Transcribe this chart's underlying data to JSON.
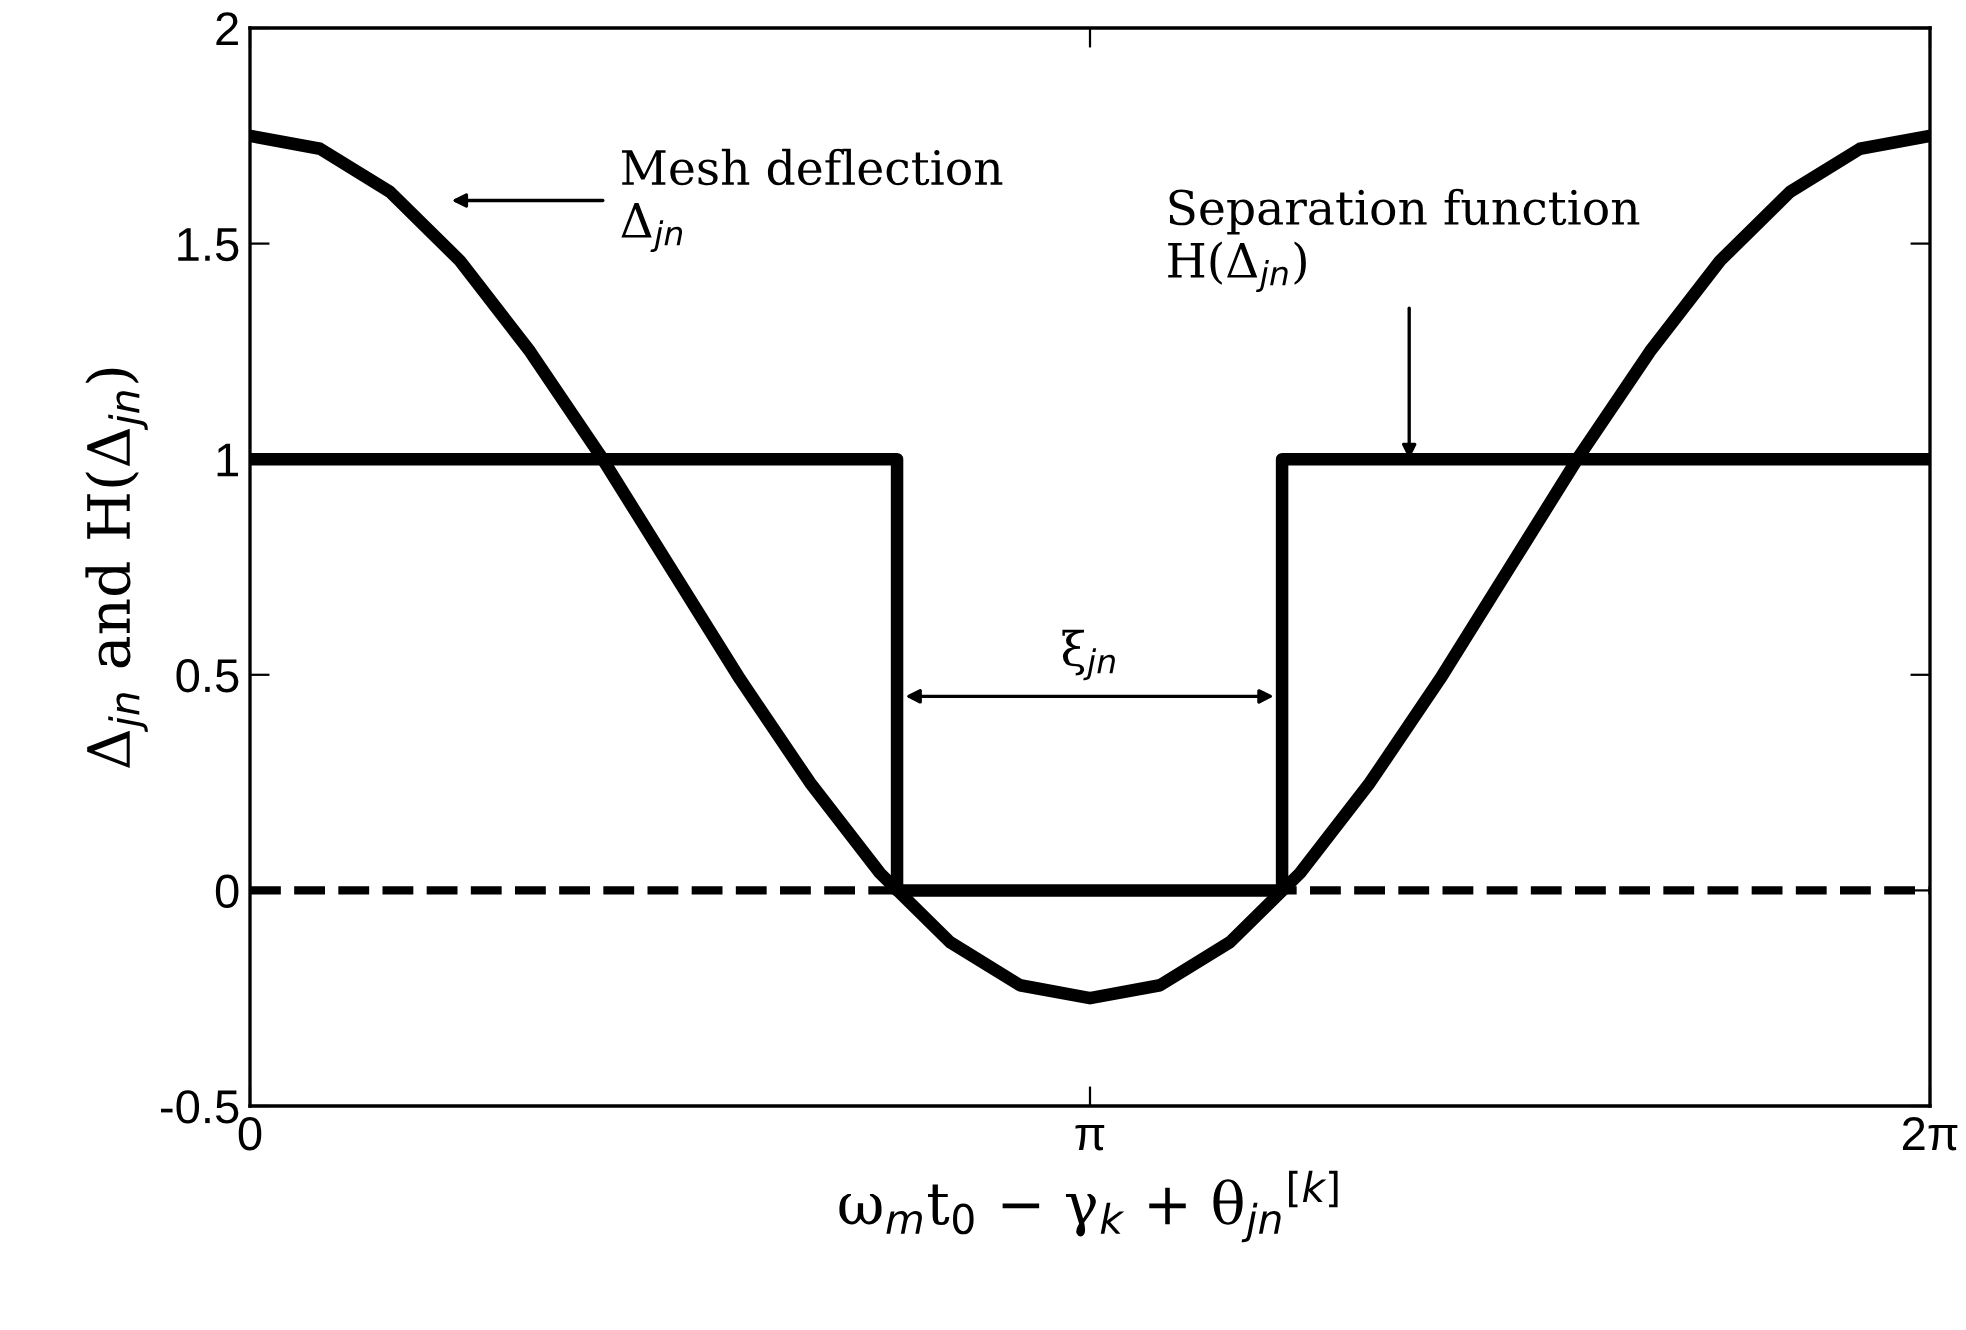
{
  "chart_data": {
    "type": "line",
    "xlabel": "ω$_{m}$t$_{0}$ − γ$_{k}$ + θ$_{jn}$$^{[k]}$",
    "ylabel": "Δ$_{jn}$ and H(Δ$_{jn}$)",
    "xlim": [
      0,
      6.2832
    ],
    "xticks": [
      0,
      {
        "value": 3.1416,
        "label": "π"
      },
      {
        "value": 6.2832,
        "label": "2π"
      }
    ],
    "ylim": [
      -0.5,
      2
    ],
    "yticks": [
      -0.5,
      0,
      0.5,
      1,
      1.5,
      2
    ],
    "grid": false,
    "legend": false,
    "marker": "none",
    "line_style": "solid",
    "series": [
      {
        "color": "#000000",
        "x": [
          0,
          0.2618,
          0.5236,
          0.7854,
          1.0472,
          1.309,
          1.5708,
          1.8326,
          2.0944,
          2.3562,
          2.618,
          2.8798,
          3.1416,
          3.4034,
          3.6652,
          3.927,
          4.1888,
          4.4506,
          4.7124,
          4.9742,
          5.236,
          5.4978,
          5.7596,
          6.0214,
          6.2832
        ],
        "values": [
          1.75,
          1.72,
          1.62,
          1.46,
          1.25,
          1.01,
          0.75,
          0.49,
          0.25,
          0.04,
          -0.12,
          -0.22,
          -0.25,
          -0.22,
          -0.12,
          0.04,
          0.25,
          0.49,
          0.75,
          1.01,
          1.25,
          1.46,
          1.62,
          1.72,
          1.75
        ]
      },
      {
        "color": "#000000",
        "x": [
          0,
          2.42,
          2.42,
          3.86,
          3.86,
          6.2832
        ],
        "values": [
          1,
          1,
          0,
          0,
          1,
          1
        ]
      }
    ],
    "ref_lines": [
      {
        "axis": "y",
        "value": 0,
        "color": "#000000",
        "line_style": "dashed"
      }
    ],
    "annotations": [
      "Mesh deflection\nΔ$_{jn}$",
      "Separation function\nH(Δ$_{jn}$)",
      "ξ$_{jn}$"
    ]
  }
}
